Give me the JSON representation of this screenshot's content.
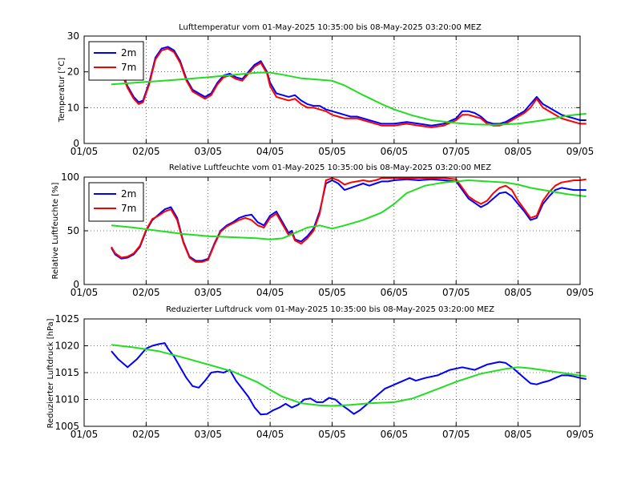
{
  "colors": {
    "blue": "#0000ff",
    "red": "#ff0000",
    "green": "#22dd22"
  },
  "chart_data": [
    {
      "type": "line",
      "title": "Lufttemperatur vom 01-May-2025 10:35:00 bis 08-May-2025 03:20:00 MEZ",
      "ylabel": "Temperatur [°C]",
      "xlabel": "",
      "xlim": [
        0,
        8
      ],
      "ylim": [
        0,
        30
      ],
      "xticks": [
        0,
        1,
        2,
        3,
        4,
        5,
        6,
        7,
        8
      ],
      "xtick_labels": [
        "01/05",
        "02/05",
        "03/05",
        "04/05",
        "05/05",
        "06/05",
        "07/05",
        "08/05",
        "09/05"
      ],
      "yticks": [
        0,
        10,
        20,
        30
      ],
      "ytick_labels": [
        "0",
        "10",
        "20",
        "30"
      ],
      "grid": true,
      "legend": "top-left",
      "series": [
        {
          "name": "2m",
          "color": "#0000ff",
          "x": [
            0.44,
            0.55,
            0.7,
            0.8,
            0.88,
            0.95,
            1.05,
            1.15,
            1.25,
            1.35,
            1.45,
            1.55,
            1.65,
            1.75,
            1.85,
            1.95,
            2.05,
            2.15,
            2.25,
            2.35,
            2.45,
            2.55,
            2.65,
            2.75,
            2.85,
            2.95,
            3.0,
            3.1,
            3.2,
            3.3,
            3.4,
            3.5,
            3.6,
            3.7,
            3.8,
            3.9,
            4.0,
            4.1,
            4.2,
            4.3,
            4.4,
            4.5,
            4.6,
            4.7,
            4.8,
            4.9,
            5.0,
            5.2,
            5.4,
            5.6,
            5.8,
            6.0,
            6.1,
            6.2,
            6.3,
            6.4,
            6.5,
            6.6,
            6.7,
            6.8,
            6.9,
            7.0,
            7.1,
            7.2,
            7.3,
            7.4,
            7.5,
            7.6,
            7.7,
            7.8,
            7.9,
            8.0,
            8.1
          ],
          "y": [
            24.5,
            22.5,
            16,
            13,
            11.5,
            12,
            17,
            24,
            26.5,
            27,
            26,
            23,
            18,
            15,
            14,
            13,
            14,
            17,
            19,
            19.5,
            18.5,
            18,
            20,
            22,
            23,
            20,
            17,
            14,
            13.5,
            13,
            13.5,
            12,
            11,
            10.5,
            10.5,
            9.5,
            9,
            8.5,
            8,
            7.5,
            7.5,
            7,
            6.5,
            6,
            5.5,
            5.5,
            5.5,
            6,
            5.5,
            5,
            5.5,
            7,
            9,
            9,
            8.5,
            7.5,
            6,
            5.5,
            5.5,
            6,
            7,
            8,
            9,
            11,
            13,
            11,
            10,
            9,
            8,
            7.5,
            7,
            6.5,
            6.5
          ]
        },
        {
          "name": "7m",
          "color": "#ff0000",
          "x": [
            0.44,
            0.55,
            0.7,
            0.8,
            0.88,
            0.95,
            1.05,
            1.15,
            1.25,
            1.35,
            1.45,
            1.55,
            1.65,
            1.75,
            1.85,
            1.95,
            2.05,
            2.15,
            2.25,
            2.35,
            2.45,
            2.55,
            2.65,
            2.75,
            2.85,
            2.95,
            3.0,
            3.1,
            3.2,
            3.3,
            3.4,
            3.5,
            3.6,
            3.7,
            3.8,
            3.9,
            4.0,
            4.1,
            4.2,
            4.3,
            4.4,
            4.5,
            4.6,
            4.7,
            4.8,
            4.9,
            5.0,
            5.2,
            5.4,
            5.6,
            5.8,
            6.0,
            6.1,
            6.2,
            6.3,
            6.4,
            6.5,
            6.6,
            6.7,
            6.8,
            6.9,
            7.0,
            7.1,
            7.2,
            7.3,
            7.4,
            7.5,
            7.6,
            7.7,
            7.8,
            7.9,
            8.0,
            8.1
          ],
          "y": [
            24,
            22,
            15.5,
            12.5,
            11,
            11.5,
            16.5,
            23.5,
            26,
            26.5,
            25.5,
            22.5,
            17.5,
            14.5,
            13.5,
            12.5,
            13.5,
            16.5,
            18.5,
            19,
            18,
            17.5,
            19.5,
            21.5,
            22.5,
            19.5,
            16,
            13,
            12.5,
            12,
            12.5,
            11,
            10,
            10,
            9.5,
            9,
            8,
            7.5,
            7,
            7,
            7,
            6.5,
            6,
            5.5,
            5,
            5,
            5,
            5.5,
            5,
            4.5,
            5,
            6.5,
            8,
            8,
            7.5,
            7,
            5.5,
            5,
            5,
            5.5,
            6.5,
            7.5,
            8.5,
            10,
            12.5,
            10,
            9,
            8,
            7,
            6.5,
            6,
            5.5,
            5.5
          ]
        },
        {
          "name": "",
          "color": "#22dd22",
          "x": [
            0.44,
            1.0,
            1.5,
            2.0,
            2.5,
            2.8,
            3.0,
            3.2,
            3.5,
            3.8,
            4.0,
            4.2,
            4.5,
            4.8,
            5.0,
            5.3,
            5.6,
            6.0,
            6.3,
            6.6,
            7.0,
            7.3,
            7.6,
            7.8,
            8.1
          ],
          "y": [
            16.5,
            17.2,
            17.8,
            18.5,
            19.3,
            19.8,
            19.8,
            19.2,
            18.2,
            17.8,
            17.5,
            16.2,
            13.5,
            11,
            9.5,
            7.8,
            6.5,
            5.7,
            5.3,
            5.2,
            5.5,
            6.2,
            7.0,
            7.8,
            8.3
          ]
        }
      ]
    },
    {
      "type": "line",
      "title": "Relative Luftfeuchte vom 01-May-2025 10:35:00 bis 08-May-2025 03:20:00 MEZ",
      "ylabel": "Relative Luftfeuchte [%]",
      "xlabel": "",
      "xlim": [
        0,
        8
      ],
      "ylim": [
        0,
        100
      ],
      "xticks": [
        0,
        1,
        2,
        3,
        4,
        5,
        6,
        7,
        8
      ],
      "xtick_labels": [
        "01/05",
        "02/05",
        "03/05",
        "04/05",
        "05/05",
        "06/05",
        "07/05",
        "08/05",
        "09/05"
      ],
      "yticks": [
        0,
        50,
        100
      ],
      "ytick_labels": [
        "0",
        "50",
        "100"
      ],
      "grid": true,
      "legend": "top-left",
      "series": [
        {
          "name": "2m",
          "color": "#0000ff",
          "x": [
            0.44,
            0.5,
            0.6,
            0.7,
            0.8,
            0.9,
            1.0,
            1.1,
            1.2,
            1.3,
            1.4,
            1.5,
            1.6,
            1.7,
            1.8,
            1.9,
            2.0,
            2.1,
            2.2,
            2.3,
            2.4,
            2.5,
            2.6,
            2.7,
            2.8,
            2.9,
            3.0,
            3.1,
            3.2,
            3.3,
            3.35,
            3.4,
            3.5,
            3.6,
            3.7,
            3.8,
            3.9,
            4.0,
            4.1,
            4.2,
            4.3,
            4.4,
            4.5,
            4.6,
            4.7,
            4.8,
            4.9,
            5.0,
            5.2,
            5.4,
            5.6,
            5.8,
            6.0,
            6.1,
            6.2,
            6.3,
            6.4,
            6.5,
            6.6,
            6.7,
            6.8,
            6.9,
            7.0,
            7.1,
            7.2,
            7.3,
            7.4,
            7.5,
            7.6,
            7.7,
            7.8,
            7.9,
            8.0,
            8.1
          ],
          "y": [
            34,
            28,
            24,
            25,
            28,
            35,
            50,
            60,
            65,
            70,
            72,
            62,
            40,
            26,
            22,
            22,
            24,
            38,
            50,
            55,
            58,
            62,
            64,
            65,
            58,
            55,
            64,
            68,
            58,
            48,
            50,
            42,
            40,
            45,
            52,
            68,
            94,
            97,
            94,
            88,
            90,
            92,
            94,
            92,
            94,
            96,
            96,
            97,
            98,
            97,
            98,
            97,
            96,
            88,
            80,
            76,
            72,
            75,
            80,
            85,
            86,
            82,
            75,
            68,
            60,
            62,
            75,
            82,
            88,
            90,
            89,
            88,
            88,
            88
          ]
        },
        {
          "name": "7m",
          "color": "#ff0000",
          "x": [
            0.44,
            0.5,
            0.6,
            0.7,
            0.8,
            0.9,
            1.0,
            1.1,
            1.2,
            1.3,
            1.4,
            1.5,
            1.6,
            1.7,
            1.8,
            1.9,
            2.0,
            2.1,
            2.2,
            2.3,
            2.4,
            2.5,
            2.6,
            2.7,
            2.8,
            2.9,
            3.0,
            3.1,
            3.2,
            3.3,
            3.35,
            3.4,
            3.5,
            3.6,
            3.7,
            3.8,
            3.9,
            4.0,
            4.1,
            4.2,
            4.3,
            4.4,
            4.5,
            4.6,
            4.7,
            4.8,
            4.9,
            5.0,
            5.2,
            5.4,
            5.6,
            5.8,
            6.0,
            6.1,
            6.2,
            6.3,
            6.4,
            6.5,
            6.6,
            6.7,
            6.8,
            6.9,
            7.0,
            7.1,
            7.2,
            7.3,
            7.4,
            7.5,
            7.6,
            7.7,
            7.8,
            7.9,
            8.0,
            8.1
          ],
          "y": [
            35,
            29,
            25,
            26,
            29,
            36,
            51,
            61,
            64,
            68,
            70,
            60,
            39,
            25,
            21,
            21,
            23,
            37,
            49,
            54,
            57,
            60,
            62,
            60,
            55,
            53,
            62,
            66,
            56,
            46,
            48,
            41,
            38,
            43,
            50,
            66,
            97,
            99,
            97,
            93,
            95,
            96,
            97,
            96,
            97,
            99,
            99,
            99,
            99,
            99,
            99,
            99,
            98,
            90,
            82,
            78,
            75,
            78,
            85,
            90,
            92,
            88,
            78,
            70,
            62,
            64,
            78,
            86,
            92,
            95,
            96,
            97,
            97,
            98
          ]
        },
        {
          "name": "",
          "color": "#22dd22",
          "x": [
            0.44,
            0.8,
            1.2,
            1.6,
            2.0,
            2.4,
            2.8,
            3.0,
            3.2,
            3.4,
            3.6,
            3.8,
            4.0,
            4.2,
            4.5,
            4.8,
            5.0,
            5.2,
            5.5,
            5.8,
            6.0,
            6.2,
            6.5,
            6.8,
            7.0,
            7.2,
            7.5,
            7.8,
            8.1
          ],
          "y": [
            55,
            53,
            50,
            47,
            45,
            44,
            43,
            42,
            43,
            48,
            53,
            55,
            52,
            55,
            60,
            67,
            75,
            85,
            92,
            95,
            96,
            97,
            96,
            95,
            93,
            90,
            87,
            84,
            82
          ]
        }
      ]
    },
    {
      "type": "line",
      "title": "Reduzierter Luftdruck vom 01-May-2025 10:35:00 bis 08-May-2025 03:20:00 MEZ",
      "ylabel": "Reduzierter Luftdruck [hPa]",
      "xlabel": "",
      "xlim": [
        0,
        8
      ],
      "ylim": [
        1005,
        1025
      ],
      "xticks": [
        0,
        1,
        2,
        3,
        4,
        5,
        6,
        7,
        8
      ],
      "xtick_labels": [
        "01/05",
        "02/05",
        "03/05",
        "04/05",
        "05/05",
        "06/05",
        "07/05",
        "08/05",
        "09/05"
      ],
      "yticks": [
        1005,
        1010,
        1015,
        1020,
        1025
      ],
      "ytick_labels": [
        "1005",
        "1010",
        "1015",
        "1020",
        "1025"
      ],
      "grid": true,
      "legend": "none",
      "series": [
        {
          "name": "",
          "color": "#0000ff",
          "x": [
            0.44,
            0.55,
            0.7,
            0.85,
            1.0,
            1.1,
            1.2,
            1.3,
            1.35,
            1.45,
            1.55,
            1.65,
            1.75,
            1.85,
            1.95,
            2.05,
            2.15,
            2.25,
            2.35,
            2.45,
            2.55,
            2.65,
            2.75,
            2.85,
            2.95,
            3.05,
            3.15,
            3.25,
            3.35,
            3.45,
            3.55,
            3.65,
            3.75,
            3.85,
            3.95,
            4.05,
            4.15,
            4.25,
            4.35,
            4.45,
            4.55,
            4.65,
            4.75,
            4.85,
            4.95,
            5.05,
            5.15,
            5.25,
            5.35,
            5.5,
            5.7,
            5.9,
            6.1,
            6.3,
            6.5,
            6.7,
            6.8,
            6.9,
            7.0,
            7.1,
            7.2,
            7.3,
            7.4,
            7.5,
            7.6,
            7.7,
            7.8,
            7.9,
            8.0,
            8.1
          ],
          "y": [
            1019,
            1017.5,
            1016,
            1017.5,
            1019.5,
            1020,
            1020.3,
            1020.5,
            1019.5,
            1018,
            1016,
            1014,
            1012.5,
            1012.2,
            1013.5,
            1015,
            1015.2,
            1015,
            1015.5,
            1013.5,
            1012,
            1010.5,
            1008.5,
            1007.2,
            1007.3,
            1008,
            1008.5,
            1009.2,
            1008.5,
            1009,
            1010,
            1010.2,
            1009.5,
            1009.5,
            1010.3,
            1010,
            1009,
            1008.2,
            1007.3,
            1008,
            1009,
            1010,
            1011,
            1012,
            1012.5,
            1013,
            1013.5,
            1014,
            1013.5,
            1014,
            1014.5,
            1015.5,
            1016,
            1015.5,
            1016.5,
            1017,
            1016.8,
            1016,
            1015,
            1014,
            1013,
            1012.8,
            1013.2,
            1013.5,
            1014,
            1014.5,
            1014.5,
            1014.3,
            1014,
            1013.8
          ]
        },
        {
          "name": "",
          "color": "#22dd22",
          "x": [
            0.44,
            0.8,
            1.2,
            1.6,
            2.0,
            2.4,
            2.8,
            3.0,
            3.2,
            3.5,
            3.8,
            4.0,
            4.3,
            4.6,
            5.0,
            5.3,
            5.6,
            6.0,
            6.4,
            6.8,
            7.0,
            7.2,
            7.5,
            7.8,
            8.1
          ],
          "y": [
            1020.2,
            1019.7,
            1019,
            1017.8,
            1016.5,
            1015.2,
            1013.2,
            1011.8,
            1010.5,
            1009.3,
            1008.9,
            1008.8,
            1009,
            1009.3,
            1009.5,
            1010.2,
            1011.5,
            1013.3,
            1014.8,
            1015.7,
            1016,
            1015.8,
            1015.3,
            1014.8,
            1014.3
          ]
        }
      ]
    }
  ]
}
